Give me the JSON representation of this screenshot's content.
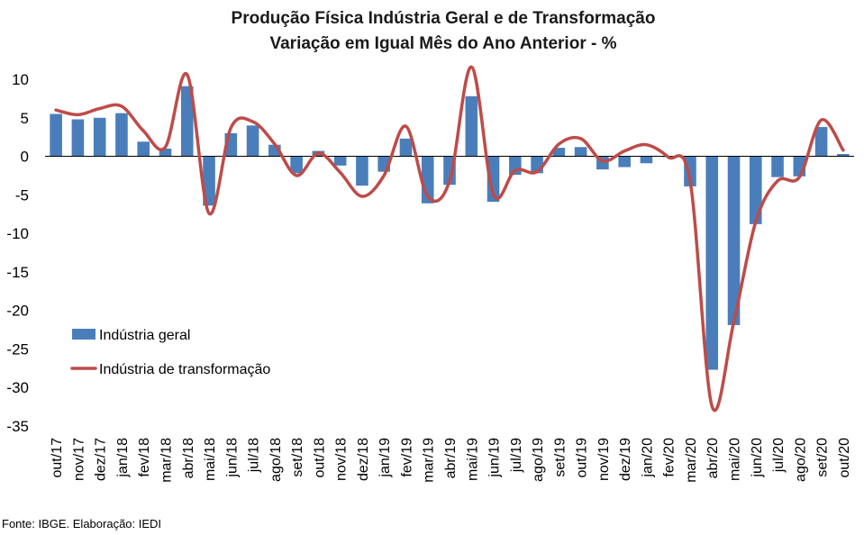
{
  "source_note": "Fonte: IBGE. Elaboração: IEDI",
  "chart_data": {
    "type": "bar",
    "title": "Produção Física Indústria Geral e de Transformação",
    "subtitle": "Variação em Igual Mês do Ano Anterior - %",
    "xlabel": "",
    "ylabel": "",
    "ylim": [
      -35,
      12
    ],
    "yticks": [
      10,
      5,
      0,
      -5,
      -10,
      -15,
      -20,
      -25,
      -30,
      -35
    ],
    "legend_position": "left-bottom",
    "grid": false,
    "categories": [
      "out/17",
      "nov/17",
      "dez/17",
      "jan/18",
      "fev/18",
      "mar/18",
      "abr/18",
      "mai/18",
      "jun/18",
      "jul/18",
      "ago/18",
      "set/18",
      "out/18",
      "nov/18",
      "dez/18",
      "jan/19",
      "fev/19",
      "mar/19",
      "abr/19",
      "mai/19",
      "jun/19",
      "jul/19",
      "ago/19",
      "set/19",
      "out/19",
      "nov/19",
      "dez/19",
      "jan/20",
      "fev/20",
      "mar/20",
      "abr/20",
      "mai/20",
      "jun/20",
      "jul/20",
      "ago/20",
      "set/20",
      "out/20"
    ],
    "series": [
      {
        "name": "Indústria geral",
        "type": "bar",
        "color": "#4a7ebb",
        "values": [
          5.5,
          4.8,
          5.0,
          5.6,
          1.9,
          1.0,
          9.1,
          -6.4,
          3.0,
          4.0,
          1.5,
          -2.2,
          0.7,
          -1.2,
          -3.8,
          -2.0,
          2.3,
          -6.1,
          -3.7,
          7.8,
          -5.9,
          -2.4,
          -2.2,
          1.1,
          1.2,
          -1.7,
          -1.4,
          -0.9,
          -0.1,
          -3.9,
          -27.7,
          -21.9,
          -8.8,
          -2.7,
          -2.6,
          3.8,
          0.3
        ]
      },
      {
        "name": "Indústria de transformação",
        "type": "line",
        "color": "#be4b48",
        "values": [
          6.0,
          5.4,
          6.2,
          6.5,
          3.3,
          1.2,
          10.6,
          -7.4,
          3.7,
          4.5,
          1.6,
          -2.5,
          0.4,
          -2.1,
          -5.2,
          -2.5,
          3.9,
          -5.2,
          -3.2,
          11.6,
          -4.9,
          -1.8,
          -2.0,
          1.6,
          2.3,
          -0.6,
          0.7,
          1.5,
          -0.1,
          -3.2,
          -32.4,
          -21.5,
          -8.5,
          -3.2,
          -2.7,
          4.7,
          0.8
        ]
      }
    ]
  }
}
